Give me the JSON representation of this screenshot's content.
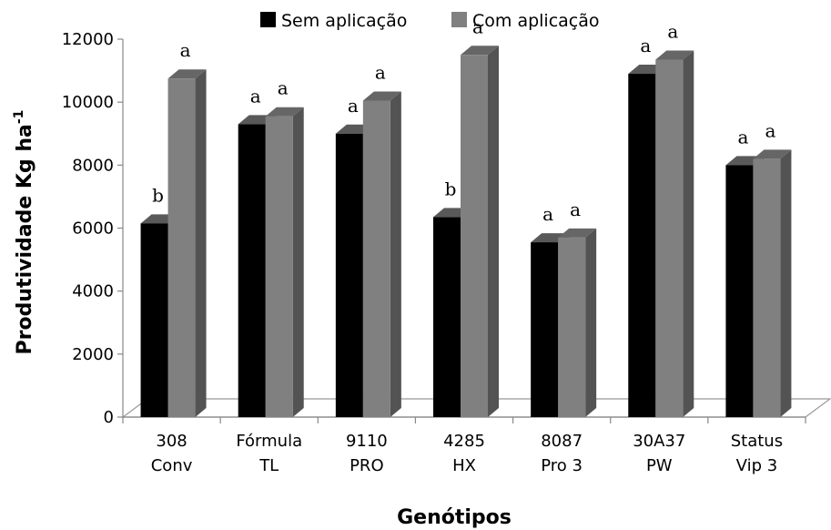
{
  "chart_data": {
    "type": "bar",
    "style": "3d-clustered",
    "categories": [
      [
        "308",
        "Conv"
      ],
      [
        "Fórmula",
        "TL"
      ],
      [
        "9110",
        "PRO"
      ],
      [
        "4285",
        "HX"
      ],
      [
        "8087",
        "Pro 3"
      ],
      [
        "30A37",
        "PW"
      ],
      [
        "Status",
        "Vip 3"
      ]
    ],
    "series": [
      {
        "name": "Sem aplicação",
        "color": "#000000",
        "values": [
          6150,
          9300,
          9000,
          6350,
          5550,
          10900,
          8000
        ],
        "significance": [
          "b",
          "a",
          "a",
          "b",
          "a",
          "a",
          "a"
        ]
      },
      {
        "name": "Com aplicação",
        "color": "#808080",
        "values": [
          10750,
          9550,
          10050,
          11500,
          5700,
          11350,
          8200
        ],
        "significance": [
          "a",
          "a",
          "a",
          "a",
          "a",
          "a",
          "a"
        ]
      }
    ],
    "xlabel": "Genótipos",
    "ylabel": "Produtividade Kg ha",
    "ylabel_superscript": "-1",
    "ylim": [
      0,
      12000
    ],
    "yticks": [
      "0",
      "2000",
      "4000",
      "6000",
      "8000",
      "10000",
      "12000"
    ],
    "legend_position": "top",
    "grid": false
  }
}
